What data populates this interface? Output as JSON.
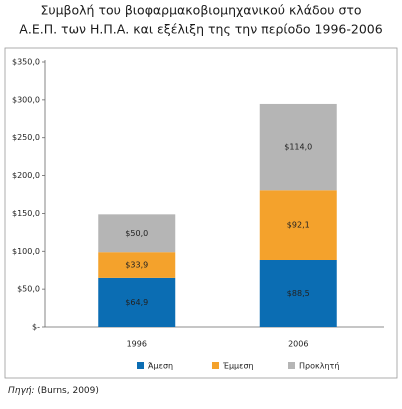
{
  "chart_data": {
    "type": "stacked-bar",
    "title": [
      "Συμβολή του βιοφαρμακοβιομηχανικού κλάδου στο",
      "Α.Ε.Π. των Η.Π.Α. και εξέλιξη της την περίοδο 1996-2006"
    ],
    "categories": [
      "1996",
      "2006"
    ],
    "series": [
      {
        "name": "Άμεση",
        "color": "#0b6db3",
        "values": [
          64.9,
          88.5
        ],
        "value_labels": [
          "$64,9",
          "$88,5"
        ]
      },
      {
        "name": "Έμμεση",
        "color": "#f4a22c",
        "values": [
          33.9,
          92.1
        ],
        "value_labels": [
          "$33,9",
          "$92,1"
        ]
      },
      {
        "name": "Προκλητή",
        "color": "#b5b5b5",
        "values": [
          50.0,
          114.0
        ],
        "value_labels": [
          "$50,0",
          "$114,0"
        ]
      }
    ],
    "ylim": [
      0,
      350
    ],
    "yticks": [
      {
        "value": 0,
        "label": "$-"
      },
      {
        "value": 50,
        "label": "$50,0"
      },
      {
        "value": 100,
        "label": "$100,0"
      },
      {
        "value": 150,
        "label": "$150,0"
      },
      {
        "value": 200,
        "label": "$200,0"
      },
      {
        "value": 250,
        "label": "$250,0"
      },
      {
        "value": 300,
        "label": "$300,0"
      },
      {
        "value": 350,
        "label": "$350,0"
      }
    ],
    "grid": false,
    "source_label": "Πηγή:",
    "source_text": "(Burns, 2009)"
  }
}
